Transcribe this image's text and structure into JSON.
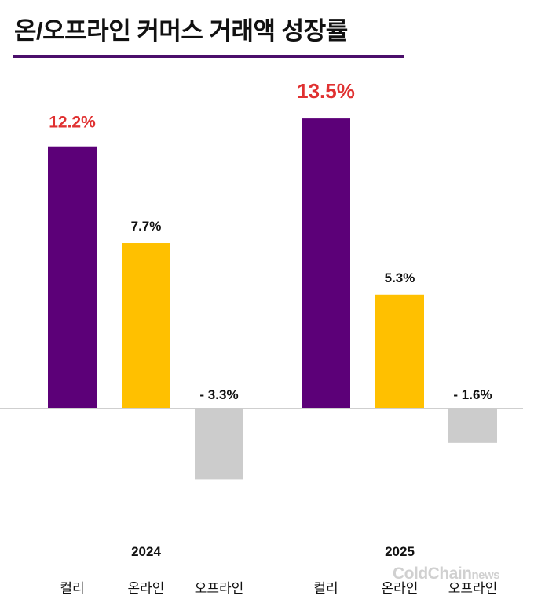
{
  "title": "온/오프라인 커머스 거래액 성장률",
  "watermark": {
    "main": "ColdChain",
    "suffix": "news"
  },
  "colors": {
    "kurly": "#5c0078",
    "online": "#ffc000",
    "offline": "#cccccc",
    "highlight": "#e03131",
    "label": "#111111",
    "title_rule": "#4b0f6b"
  },
  "chart_data": {
    "type": "bar",
    "title": "온/오프라인 커머스 거래액 성장률",
    "unit": "%",
    "groups": [
      {
        "year": "2024",
        "bars": [
          {
            "category": "컬리",
            "value": 12.2,
            "label": "12.2%",
            "highlight": true
          },
          {
            "category": "온라인",
            "value": 7.7,
            "label": "7.7%",
            "highlight": false
          },
          {
            "category": "오프라인",
            "value": -3.3,
            "label": "- 3.3%",
            "highlight": false
          }
        ]
      },
      {
        "year": "2025",
        "bars": [
          {
            "category": "컬리",
            "value": 13.5,
            "label": "13.5%",
            "highlight": true
          },
          {
            "category": "온라인",
            "value": 5.3,
            "label": "5.3%",
            "highlight": false
          },
          {
            "category": "오프라인",
            "value": -1.6,
            "label": "- 1.6%",
            "highlight": false
          }
        ]
      }
    ]
  }
}
